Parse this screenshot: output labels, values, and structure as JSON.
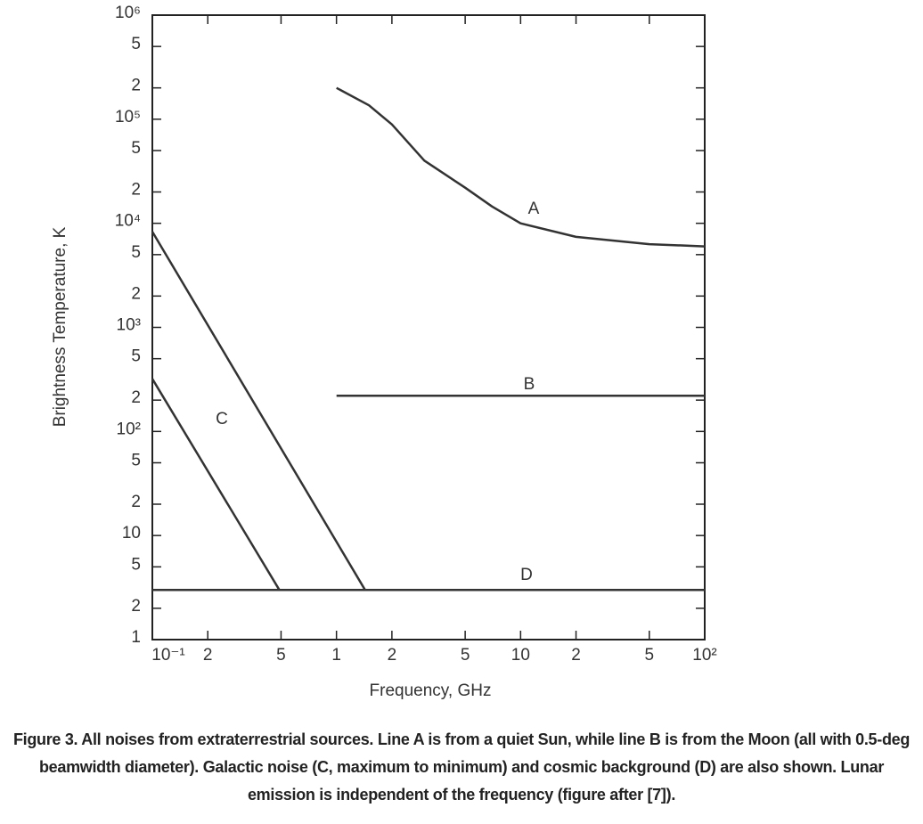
{
  "chart_data": {
    "type": "line",
    "x_label": "Frequency, GHz",
    "y_label": "Brightness Temperature, K",
    "xscale": "log",
    "yscale": "log",
    "xlim": [
      0.1,
      100
    ],
    "ylim": [
      1,
      1000000
    ],
    "xticks": [
      {
        "value": 0.1,
        "label": "10⁻¹"
      },
      {
        "value": 0.2,
        "label": "2"
      },
      {
        "value": 0.5,
        "label": "5"
      },
      1,
      {
        "value": 2,
        "label": "2"
      },
      {
        "value": 5,
        "label": "5"
      },
      10,
      {
        "value": 20,
        "label": "2"
      },
      {
        "value": 50,
        "label": "5"
      },
      {
        "value": 100,
        "label": "10²"
      }
    ],
    "yticks": [
      1,
      {
        "value": 2,
        "label": "2"
      },
      {
        "value": 5,
        "label": "5"
      },
      10,
      {
        "value": 20,
        "label": "2"
      },
      {
        "value": 50,
        "label": "5"
      },
      {
        "value": 100,
        "label": "10²"
      },
      {
        "value": 200,
        "label": "2"
      },
      {
        "value": 500,
        "label": "5"
      },
      {
        "value": 1000,
        "label": "10³"
      },
      {
        "value": 2000,
        "label": "2"
      },
      {
        "value": 5000,
        "label": "5"
      },
      {
        "value": 10000,
        "label": "10⁴"
      },
      {
        "value": 20000,
        "label": "2"
      },
      {
        "value": 50000,
        "label": "5"
      },
      {
        "value": 100000,
        "label": "10⁵"
      },
      {
        "value": 200000,
        "label": "2"
      },
      {
        "value": 500000,
        "label": "5"
      },
      {
        "value": 1000000,
        "label": "10⁶"
      }
    ],
    "color": "#333333",
    "series": [
      {
        "x": [
          1,
          1.5,
          2,
          3,
          5,
          7,
          10,
          20,
          50,
          100
        ],
        "values": [
          200000,
          136000,
          89000,
          40000,
          22000,
          14500,
          10000,
          7400,
          6300,
          6000
        ]
      },
      {
        "x": [
          1,
          100
        ],
        "values": [
          220,
          220
        ]
      },
      {
        "x": [
          0.1,
          1.43
        ],
        "values": [
          8300,
          3
        ]
      },
      {
        "x": [
          0.1,
          0.49
        ],
        "values": [
          320,
          3
        ]
      },
      {
        "x": [
          0.1,
          100
        ],
        "values": [
          3,
          3
        ]
      }
    ],
    "annotations": [
      "A",
      "B",
      "C",
      "D"
    ],
    "caption": "Figure 3. All noises from extraterrestrial sources. Line A is from a quiet Sun, while line B is from the Moon (all with 0.5-deg beamwidth diameter). Galactic noise (C, maximum to minimum) and cosmic background (D) are also shown. Lunar emission is independent of the frequency (figure after [7])."
  }
}
